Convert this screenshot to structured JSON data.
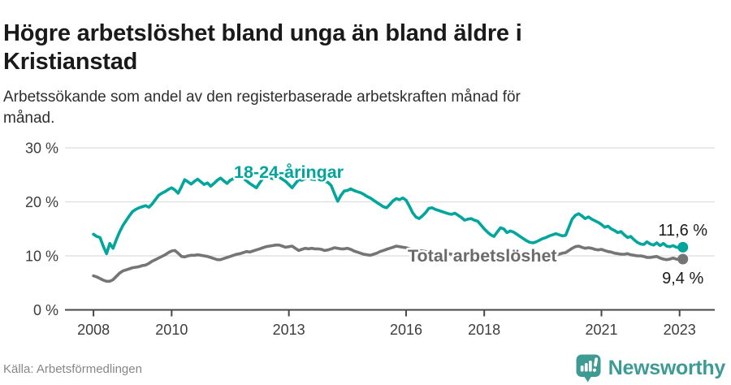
{
  "header": {
    "title": "Högre arbetslöshet bland unga än bland äldre i\nKristianstad",
    "subtitle": "Arbetssökande som andel av den registerbaserade arbetskraften månad för\nmånad."
  },
  "footer": {
    "source": "Källa: Arbetsförmedlingen",
    "brand": "Newsworthy"
  },
  "colors": {
    "youth": "#00a59b",
    "total": "#757575",
    "total_label": "#6b6b6b",
    "grid": "#dedede",
    "axis": "#474747",
    "tick_text": "#3d3d3d",
    "end_label_text": "#1a1a1a",
    "brand_teal": "#3d9b94"
  },
  "chart_data": {
    "type": "line",
    "title": "Högre arbetslöshet bland unga än bland äldre i Kristianstad",
    "xlabel": "",
    "ylabel": "Arbetssökande som andel av den registerbaserade arbetskraften",
    "grid": "horizontal",
    "legend_position": "inline-labels",
    "x_start_year": 2008,
    "x_step_months": 1,
    "x_ticks": [
      2008,
      2010,
      2013,
      2016,
      2018,
      2021,
      2023
    ],
    "y_ticks": [
      0,
      10,
      20,
      30
    ],
    "y_tick_suffix": " %",
    "ylim": [
      0,
      30
    ],
    "xlim_years": [
      2007.27,
      2023.9
    ],
    "series": [
      {
        "name": "Total arbetslöshet",
        "end_label": "9,4 %",
        "end_value": 9.4,
        "values": [
          6.3,
          6.1,
          5.8,
          5.5,
          5.3,
          5.3,
          5.6,
          6.2,
          6.8,
          7.2,
          7.4,
          7.6,
          7.8,
          7.9,
          8.0,
          8.2,
          8.3,
          8.6,
          9.0,
          9.3,
          9.6,
          9.9,
          10.2,
          10.6,
          10.9,
          11.0,
          10.5,
          9.9,
          9.8,
          10.0,
          10.1,
          10.1,
          10.2,
          10.1,
          10.0,
          9.9,
          9.7,
          9.5,
          9.3,
          9.3,
          9.5,
          9.7,
          9.9,
          10.1,
          10.3,
          10.4,
          10.6,
          10.8,
          10.7,
          10.9,
          11.1,
          11.3,
          11.5,
          11.7,
          11.8,
          11.9,
          12.0,
          12.0,
          11.8,
          11.6,
          11.7,
          11.8,
          11.4,
          11.0,
          11.2,
          11.4,
          11.3,
          11.4,
          11.3,
          11.3,
          11.2,
          11.0,
          11.1,
          11.3,
          11.5,
          11.4,
          11.3,
          11.3,
          11.4,
          11.2,
          10.9,
          10.7,
          10.5,
          10.3,
          10.2,
          10.1,
          10.3,
          10.5,
          10.8,
          11.0,
          11.2,
          11.4,
          11.6,
          11.8,
          11.7,
          11.6,
          11.5,
          11.3,
          11.2,
          11.1,
          11.0,
          10.9,
          10.8,
          10.7,
          10.7,
          10.6,
          10.6,
          10.5,
          10.4,
          10.4,
          10.3,
          10.3,
          10.2,
          10.2,
          10.1,
          10.1,
          10.0,
          10.0,
          10.0,
          9.9,
          9.9,
          9.9,
          9.8,
          9.8,
          9.8,
          9.7,
          9.7,
          9.7,
          9.6,
          9.6,
          9.6,
          9.6,
          9.6,
          9.6,
          9.7,
          9.7,
          9.7,
          9.8,
          9.8,
          9.9,
          10.0,
          10.1,
          10.2,
          10.3,
          10.5,
          10.6,
          11.0,
          11.4,
          11.7,
          11.8,
          11.6,
          11.4,
          11.5,
          11.4,
          11.2,
          11.1,
          11.2,
          11.0,
          10.8,
          10.7,
          10.5,
          10.4,
          10.3,
          10.3,
          10.4,
          10.2,
          10.1,
          10.0,
          10.0,
          9.9,
          9.7,
          9.7,
          9.8,
          9.9,
          9.6,
          9.4,
          9.3,
          9.4,
          9.6,
          9.4,
          9.3,
          9.4
        ]
      },
      {
        "name": "18-24-åringar",
        "end_label": "11,6 %",
        "end_value": 11.6,
        "values": [
          14.0,
          13.6,
          13.4,
          11.8,
          10.4,
          12.3,
          11.4,
          13.0,
          14.4,
          15.6,
          16.5,
          17.4,
          18.2,
          18.6,
          18.9,
          19.1,
          19.3,
          19.0,
          19.6,
          20.4,
          21.2,
          21.6,
          21.9,
          22.3,
          22.6,
          22.2,
          21.6,
          22.8,
          24.1,
          23.7,
          23.3,
          23.8,
          24.2,
          23.7,
          23.2,
          23.5,
          22.9,
          23.4,
          24.0,
          24.4,
          23.9,
          23.4,
          24.0,
          24.3,
          24.6,
          24.8,
          24.4,
          23.9,
          23.4,
          23.0,
          22.6,
          23.5,
          24.3,
          24.4,
          24.5,
          24.3,
          24.4,
          24.6,
          24.2,
          23.8,
          23.2,
          22.6,
          23.4,
          24.1,
          24.0,
          24.3,
          24.4,
          24.2,
          24.1,
          24.2,
          24.0,
          23.8,
          23.6,
          23.0,
          21.5,
          20.1,
          21.2,
          22.0,
          22.1,
          22.4,
          22.1,
          21.9,
          21.7,
          21.4,
          21.0,
          20.7,
          20.3,
          19.9,
          19.5,
          19.1,
          18.9,
          19.5,
          20.2,
          20.6,
          20.4,
          20.7,
          20.3,
          19.2,
          18.0,
          17.2,
          16.9,
          17.4,
          18.0,
          18.8,
          18.9,
          18.6,
          18.4,
          18.2,
          18.0,
          17.8,
          17.7,
          17.9,
          17.5,
          17.1,
          16.6,
          16.8,
          16.9,
          16.6,
          16.4,
          15.7,
          15.0,
          14.4,
          13.9,
          13.6,
          14.4,
          15.2,
          15.0,
          14.3,
          14.6,
          14.4,
          14.0,
          13.6,
          13.2,
          12.8,
          12.5,
          12.4,
          12.6,
          12.9,
          13.2,
          13.4,
          13.7,
          13.9,
          14.1,
          13.9,
          13.7,
          13.8,
          15.3,
          16.8,
          17.5,
          17.8,
          17.4,
          16.9,
          17.2,
          16.8,
          16.5,
          16.2,
          15.8,
          15.3,
          15.5,
          15.0,
          14.7,
          14.3,
          14.5,
          13.9,
          13.4,
          13.6,
          13.0,
          12.5,
          12.2,
          12.1,
          12.6,
          12.2,
          12.0,
          12.4,
          11.9,
          12.3,
          11.8,
          11.7,
          11.9,
          11.6,
          11.5,
          11.6
        ]
      }
    ]
  }
}
